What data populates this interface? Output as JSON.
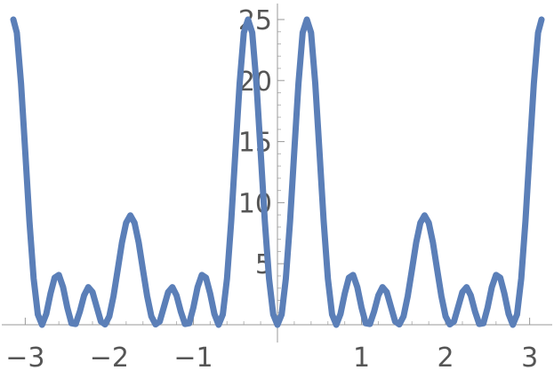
{
  "chart_data": {
    "type": "line",
    "title": "",
    "xlabel": "",
    "ylabel": "",
    "xlim": [
      -3.1416,
      3.1416
    ],
    "ylim": [
      0,
      25
    ],
    "grid": false,
    "legend": "none",
    "x_ticks": [
      {
        "value": -3,
        "label": "−3"
      },
      {
        "value": -2,
        "label": "−2"
      },
      {
        "value": -1,
        "label": "−1"
      },
      {
        "value": 1,
        "label": "1"
      },
      {
        "value": 2,
        "label": "2"
      },
      {
        "value": 3,
        "label": "3"
      }
    ],
    "y_ticks": [
      {
        "value": 5,
        "label": "5"
      },
      {
        "value": 10,
        "label": "10"
      },
      {
        "value": 15,
        "label": "15"
      },
      {
        "value": 20,
        "label": "20"
      },
      {
        "value": 25,
        "label": "25"
      }
    ],
    "series": [
      {
        "color": "#5b7fb8",
        "x": [
          -3.1416,
          -3.1,
          -3.05,
          -3.0,
          -2.95,
          -2.9,
          -2.85,
          -2.8,
          -2.75,
          -2.7,
          -2.65,
          -2.6,
          -2.55,
          -2.5,
          -2.45,
          -2.4,
          -2.35,
          -2.3,
          -2.25,
          -2.2,
          -2.15,
          -2.1,
          -2.05,
          -2.0,
          -1.95,
          -1.9,
          -1.85,
          -1.8,
          -1.75,
          -1.7,
          -1.65,
          -1.6,
          -1.55,
          -1.5,
          -1.45,
          -1.4,
          -1.35,
          -1.3,
          -1.25,
          -1.2,
          -1.15,
          -1.1,
          -1.05,
          -1.0,
          -0.95,
          -0.9,
          -0.85,
          -0.8,
          -0.75,
          -0.7,
          -0.65,
          -0.6,
          -0.55,
          -0.5,
          -0.45,
          -0.4,
          -0.35,
          -0.3,
          -0.25,
          -0.2,
          -0.15,
          -0.1,
          -0.05,
          0.0,
          0.05,
          0.1,
          0.15,
          0.2,
          0.25,
          0.3,
          0.35,
          0.4,
          0.45,
          0.5,
          0.55,
          0.6,
          0.65,
          0.7,
          0.75,
          0.8,
          0.85,
          0.9,
          0.95,
          1.0,
          1.05,
          1.1,
          1.15,
          1.2,
          1.25,
          1.3,
          1.35,
          1.4,
          1.45,
          1.5,
          1.55,
          1.6,
          1.65,
          1.7,
          1.75,
          1.8,
          1.85,
          1.9,
          1.95,
          2.0,
          2.05,
          2.1,
          2.15,
          2.2,
          2.25,
          2.3,
          2.35,
          2.4,
          2.45,
          2.5,
          2.55,
          2.6,
          2.65,
          2.7,
          2.75,
          2.8,
          2.85,
          2.9,
          2.95,
          3.0,
          3.05,
          3.1,
          3.1416
        ],
        "y": [
          25.0,
          23.92,
          19.76,
          14.18,
          8.47,
          3.78,
          0.84,
          0.0,
          0.88,
          2.54,
          3.86,
          4.08,
          3.08,
          1.41,
          0.12,
          0.06,
          1.09,
          2.4,
          3.08,
          2.68,
          1.47,
          0.27,
          0.03,
          0.69,
          2.35,
          4.51,
          6.72,
          8.35,
          8.96,
          8.35,
          6.72,
          4.51,
          2.35,
          0.69,
          0.03,
          0.27,
          1.47,
          2.68,
          3.08,
          2.4,
          1.09,
          0.06,
          0.12,
          1.41,
          3.08,
          4.08,
          3.86,
          2.54,
          0.88,
          0.0,
          0.84,
          3.78,
          8.47,
          14.18,
          19.76,
          23.92,
          25.0,
          23.92,
          19.76,
          14.18,
          8.47,
          3.78,
          0.84,
          0.0,
          0.84,
          3.78,
          8.47,
          14.18,
          19.76,
          23.92,
          25.0,
          23.92,
          19.76,
          14.18,
          8.47,
          3.78,
          0.84,
          0.0,
          0.88,
          2.54,
          3.86,
          4.08,
          3.08,
          1.41,
          0.12,
          0.06,
          1.09,
          2.4,
          3.08,
          2.68,
          1.47,
          0.27,
          0.03,
          0.69,
          2.35,
          4.51,
          6.72,
          8.35,
          8.96,
          8.35,
          6.72,
          4.51,
          2.35,
          0.69,
          0.03,
          0.27,
          1.47,
          2.68,
          3.08,
          2.4,
          1.09,
          0.06,
          0.12,
          1.41,
          3.08,
          4.08,
          3.86,
          2.54,
          0.88,
          0.0,
          0.84,
          3.78,
          8.47,
          14.18,
          19.76,
          23.92,
          25.0
        ]
      }
    ]
  }
}
